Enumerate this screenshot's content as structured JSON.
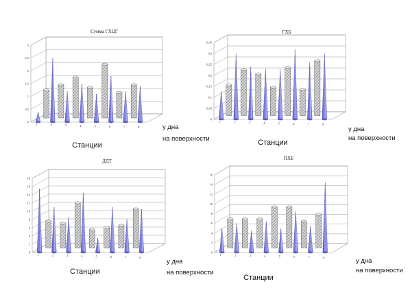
{
  "colors": {
    "cone": "#7b7fe0",
    "cone_dark": "#3d3fa8",
    "cylinder_pattern": "#8a8a8a",
    "grid": "#9a9a9a"
  },
  "chart_data": [
    {
      "type": "bar",
      "title": "Сумма ГХЦГ",
      "xlabel": "Станции",
      "series_labels": [
        "у дна",
        "на поверхности"
      ],
      "categories": [
        "1",
        "2",
        "3",
        "4",
        "5",
        "6",
        "7",
        "8"
      ],
      "ylim": [
        0,
        3
      ],
      "yticks": [
        "0",
        "0,5",
        "1",
        "1,5",
        "2",
        "2,5",
        "3"
      ],
      "series": [
        {
          "values": [
            1.1,
            1.3,
            1.6,
            1.2,
            2.1,
            1.0,
            1.3,
            0.0
          ]
        },
        {
          "values": [
            0.4,
            2.5,
            1.2,
            1.5,
            1.1,
            1.8,
            1.2,
            1.4
          ]
        }
      ],
      "grid": true
    },
    {
      "type": "bar",
      "title": "ГХБ",
      "xlabel": "Станции",
      "series_labels": [
        "у дна",
        "на поверхности"
      ],
      "categories": [
        "1",
        "2",
        "3",
        "4",
        "5",
        "6",
        "7",
        "8"
      ],
      "ylim": [
        0,
        0.35
      ],
      "yticks": [
        "0",
        "0,05",
        "0,1",
        "0,15",
        "0,2",
        "0,25",
        "0,3",
        "0,35"
      ],
      "series": [
        {
          "values": [
            0.14,
            0.21,
            0.19,
            0.13,
            0.22,
            0.12,
            0.25,
            0.0
          ]
        },
        {
          "values": [
            0.13,
            0.3,
            0.24,
            0.23,
            0.23,
            0.32,
            0.26,
            0.3
          ]
        }
      ],
      "grid": true
    },
    {
      "type": "bar",
      "title": "ДДТ",
      "xlabel": "Станции",
      "series_labels": [
        "у дна",
        "на поверхности"
      ],
      "categories": [
        "1",
        "2",
        "3",
        "4",
        "5",
        "6",
        "7",
        "8"
      ],
      "ylim": [
        0,
        18
      ],
      "yticks": [
        "0",
        "2",
        "4",
        "6",
        "8",
        "10",
        "12",
        "14",
        "16",
        "18"
      ],
      "series": [
        {
          "values": [
            6.5,
            6.0,
            11.0,
            4.5,
            5.0,
            5.5,
            9.5,
            0.0
          ]
        },
        {
          "values": [
            15.5,
            11.0,
            8.5,
            14.5,
            3.5,
            11.0,
            8.0,
            10.5
          ]
        }
      ],
      "grid": true
    },
    {
      "type": "bar",
      "title": "ПХБ",
      "xlabel": "Станции",
      "series_labels": [
        "у дна",
        "на поверхности"
      ],
      "categories": [
        "1",
        "2",
        "3",
        "4",
        "5",
        "6",
        "7",
        "8"
      ],
      "ylim": [
        0,
        16
      ],
      "yticks": [
        "0",
        "2",
        "4",
        "6",
        "8",
        "10",
        "12",
        "14",
        "16"
      ],
      "series": [
        {
          "values": [
            6.0,
            6.0,
            6.0,
            8.5,
            8.5,
            5.5,
            7.0,
            0.0
          ]
        },
        {
          "values": [
            5.0,
            6.0,
            4.5,
            6.5,
            5.0,
            8.5,
            5.5,
            14.5
          ]
        }
      ],
      "grid": true
    }
  ]
}
